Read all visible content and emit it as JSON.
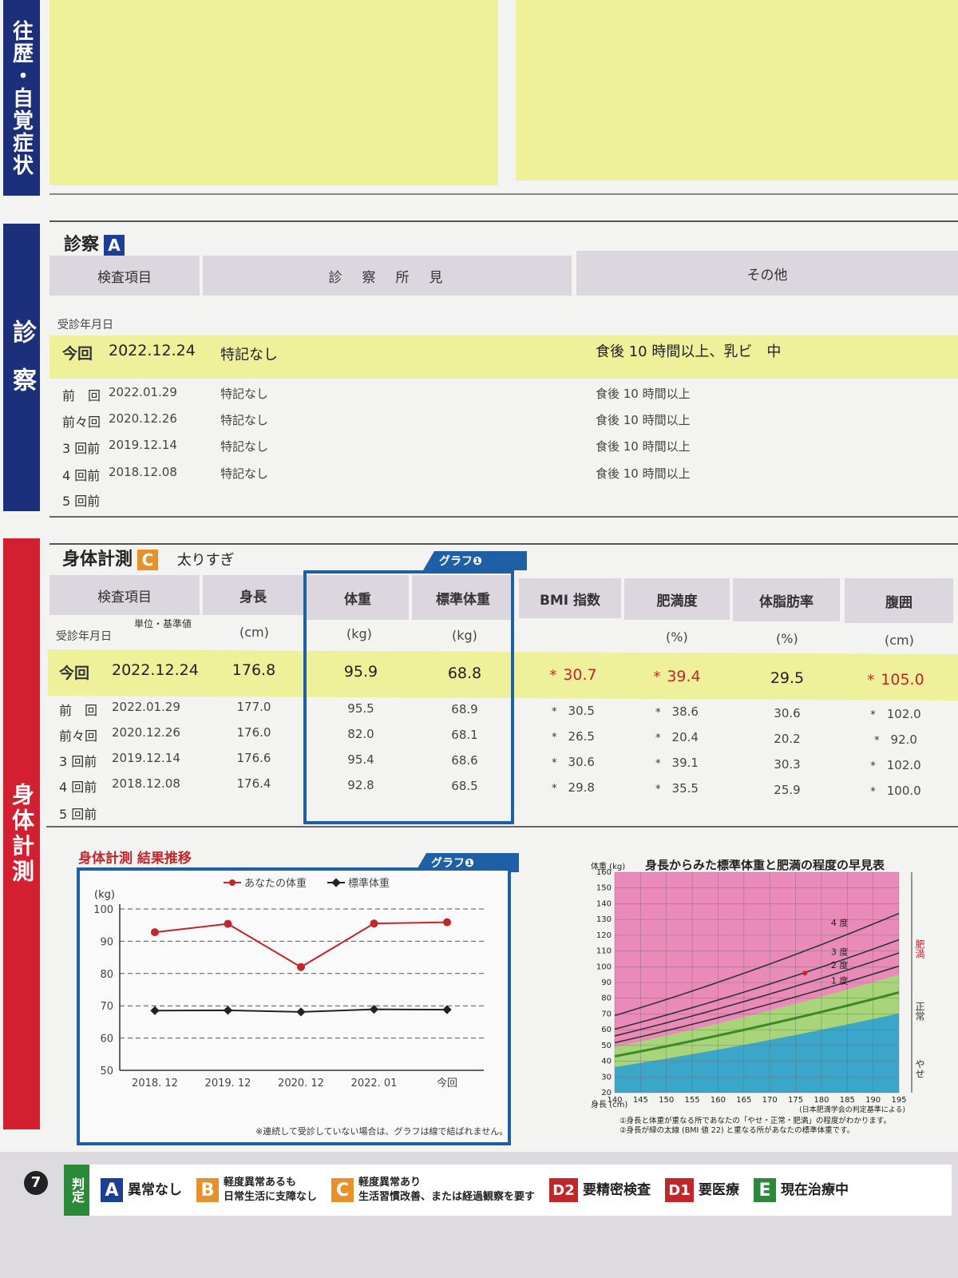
{
  "history_tab": "往歴・自覚症状",
  "exam": {
    "tab": "診察",
    "title": "診察",
    "grade": "A",
    "headers": [
      "検査項目",
      "診　察　所　見",
      "その他"
    ],
    "date_label": "受診年月日",
    "rows": [
      {
        "label": "今回",
        "date": "2022.12.24",
        "finding": "特記なし",
        "other": "食後 10 時間以上、乳ビ　中"
      },
      {
        "label": "前　回",
        "date": "2022.01.29",
        "finding": "特記なし",
        "other": "食後 10 時間以上"
      },
      {
        "label": "前々回",
        "date": "2020.12.26",
        "finding": "特記なし",
        "other": "食後 10 時間以上"
      },
      {
        "label": "3 回前",
        "date": "2019.12.14",
        "finding": "特記なし",
        "other": "食後 10 時間以上"
      },
      {
        "label": "4 回前",
        "date": "2018.12.08",
        "finding": "特記なし",
        "other": "食後 10 時間以上"
      },
      {
        "label": "5 回前",
        "date": "",
        "finding": "",
        "other": ""
      }
    ]
  },
  "body": {
    "tab": "身体計測",
    "title": "身体計測",
    "grade": "C",
    "grade_note": "太りすぎ",
    "graph_tag": "グラフ❶",
    "headers": [
      "検査項目",
      "身長",
      "体重",
      "標準体重",
      "BMI 指数",
      "肥満度",
      "体脂肪率",
      "腹囲"
    ],
    "unit_label": "単位・基準値",
    "date_label": "受診年月日",
    "units": [
      "(cm)",
      "(kg)",
      "(kg)",
      "",
      "(%)",
      "(%)",
      "(cm)"
    ],
    "rows": [
      {
        "label": "今回",
        "date": "2022.12.24",
        "height": "176.8",
        "weight": "95.9",
        "std": "68.8",
        "bmi": "30.7",
        "obesity": "39.4",
        "fat": "29.5",
        "waist": "105.0"
      },
      {
        "label": "前　回",
        "date": "2022.01.29",
        "height": "177.0",
        "weight": "95.5",
        "std": "68.9",
        "bmi": "30.5",
        "obesity": "38.6",
        "fat": "30.6",
        "waist": "102.0"
      },
      {
        "label": "前々回",
        "date": "2020.12.26",
        "height": "176.0",
        "weight": "82.0",
        "std": "68.1",
        "bmi": "26.5",
        "obesity": "20.4",
        "fat": "20.2",
        "waist": "92.0"
      },
      {
        "label": "3 回前",
        "date": "2019.12.14",
        "height": "176.6",
        "weight": "95.4",
        "std": "68.6",
        "bmi": "30.6",
        "obesity": "39.1",
        "fat": "30.3",
        "waist": "102.0"
      },
      {
        "label": "4 回前",
        "date": "2018.12.08",
        "height": "176.4",
        "weight": "92.8",
        "std": "68.5",
        "bmi": "29.8",
        "obesity": "35.5",
        "fat": "25.9",
        "waist": "100.0"
      },
      {
        "label": "5 回前",
        "date": "",
        "height": "",
        "weight": "",
        "std": "",
        "bmi": "",
        "obesity": "",
        "fat": "",
        "waist": ""
      }
    ],
    "star": "*"
  },
  "trend": {
    "title": "身体計測 結果推移",
    "graph_tag": "グラフ❶",
    "note": "※連続して受診していない場合は、グラフは線で結ばれません。"
  },
  "chart_data": [
    {
      "type": "line",
      "title": "",
      "ylabel": "(kg)",
      "xlabel": "",
      "categories": [
        "2018. 12",
        "2019. 12",
        "2020. 12",
        "2022. 01",
        "今回"
      ],
      "ylim": [
        50,
        100
      ],
      "yticks": [
        50,
        60,
        70,
        80,
        90,
        100
      ],
      "grid": true,
      "legend": "top",
      "series": [
        {
          "name": "あなたの体重",
          "color": "#c0262a",
          "values": [
            92.8,
            95.4,
            82.0,
            95.5,
            95.9
          ]
        },
        {
          "name": "標準体重",
          "color": "#222222",
          "values": [
            68.5,
            68.6,
            68.1,
            68.9,
            68.8
          ]
        }
      ]
    },
    {
      "type": "area",
      "title": "身長からみた標準体重と肥満の程度の早見表",
      "ylabel": "体重 (kg)",
      "xlabel": "身長 (cm)",
      "xlim": [
        140,
        195
      ],
      "ylim": [
        20,
        160
      ],
      "xticks": [
        140,
        145,
        150,
        155,
        160,
        165,
        170,
        175,
        180,
        185,
        190,
        195
      ],
      "yticks": [
        20,
        30,
        40,
        50,
        60,
        70,
        80,
        90,
        100,
        110,
        120,
        130,
        140,
        150,
        160
      ],
      "degree_labels": [
        "4 度",
        "3 度",
        "2 度",
        "1 度"
      ],
      "zone_labels": [
        "肥満",
        "正常",
        "やせ"
      ],
      "source": "(日本肥満学会の判定基準による)",
      "notes": [
        "①身長と体重が重なる所であなたの「やせ・正常・肥満」の程度がわかります。",
        "②身長が緑の太線 (BMI 値 22) と重なる所があなたの標準体重です。"
      ],
      "point": {
        "x": 176.8,
        "y": 95.9
      }
    }
  ],
  "footer": {
    "page": "7",
    "judge_label": "判定",
    "items": [
      {
        "badge": "A",
        "text": "異常なし",
        "color": "#1c3f95"
      },
      {
        "badge": "B",
        "text": "軽度異常あるも\n日常生活に支障なし",
        "color": "#e8912a"
      },
      {
        "badge": "C",
        "text": "軽度異常あり\n生活習慣改善、または経過観察を要す",
        "color": "#e8912a"
      },
      {
        "badge": "D2",
        "text": "要精密検査",
        "color": "#c0262a"
      },
      {
        "badge": "D1",
        "text": "要医療",
        "color": "#c0262a"
      },
      {
        "badge": "E",
        "text": "現在治療中",
        "color": "#2a8a3a"
      }
    ]
  }
}
